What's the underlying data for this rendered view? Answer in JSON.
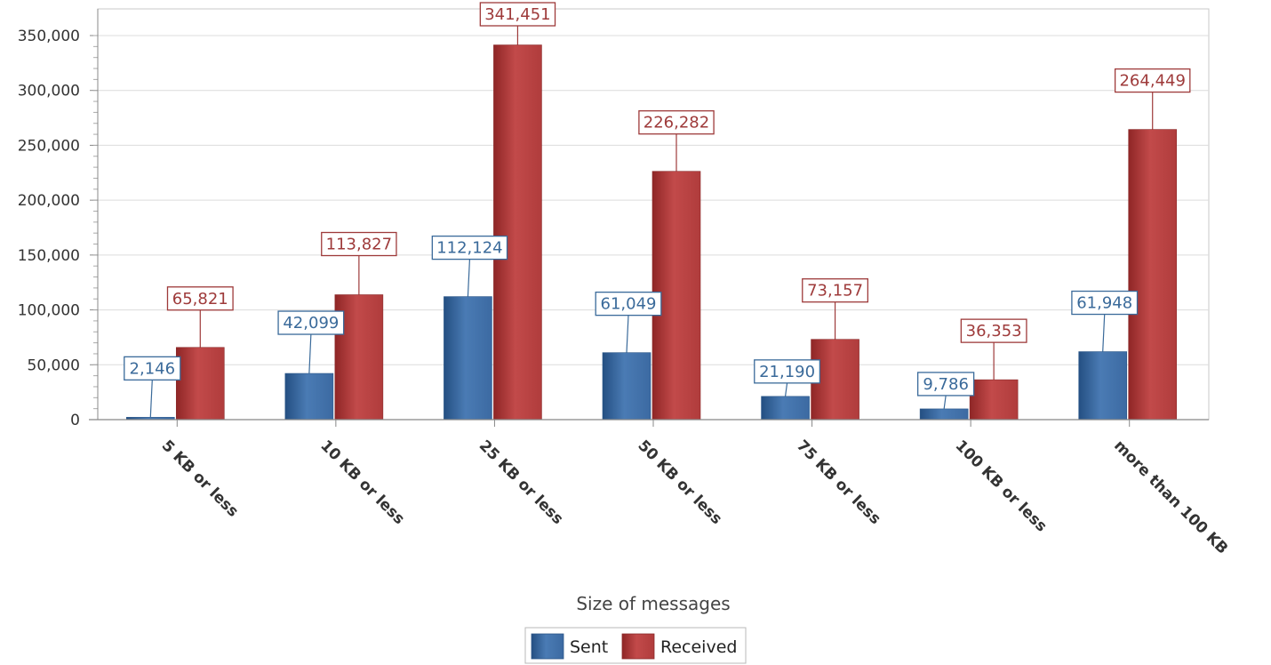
{
  "chart_data": {
    "type": "bar",
    "title": "",
    "xlabel": "Size of messages",
    "ylabel": "",
    "categories": [
      "5 KB or less",
      "10 KB or less",
      "25 KB or less",
      "50 KB or less",
      "75 KB or less",
      "100 KB or less",
      "more than 100 KB"
    ],
    "series": [
      {
        "name": "Sent",
        "values": [
          2146,
          42099,
          112124,
          61049,
          21190,
          9786,
          61948
        ],
        "color": "#3a6aa0",
        "label_color": "#3a6a9a"
      },
      {
        "name": "Received",
        "values": [
          65821,
          113827,
          341451,
          226282,
          73157,
          36353,
          264449
        ],
        "color": "#b03b3b",
        "label_color": "#9e3a3a"
      }
    ],
    "ylim": [
      0,
      350000
    ],
    "yticks": [
      0,
      50000,
      100000,
      150000,
      200000,
      250000,
      300000,
      350000
    ],
    "ytick_labels": [
      "0",
      "50,000",
      "100,000",
      "150,000",
      "200,000",
      "250,000",
      "300,000",
      "350,000"
    ],
    "data_labels": {
      "Sent": [
        "2,146",
        "42,099",
        "112,124",
        "61,049",
        "21,190",
        "9,786",
        "61,948"
      ],
      "Received": [
        "65,821",
        "113,827",
        "341,451",
        "226,282",
        "73,157",
        "36,353",
        "264,449"
      ]
    },
    "grid": true,
    "legend_position": "bottom-center"
  }
}
